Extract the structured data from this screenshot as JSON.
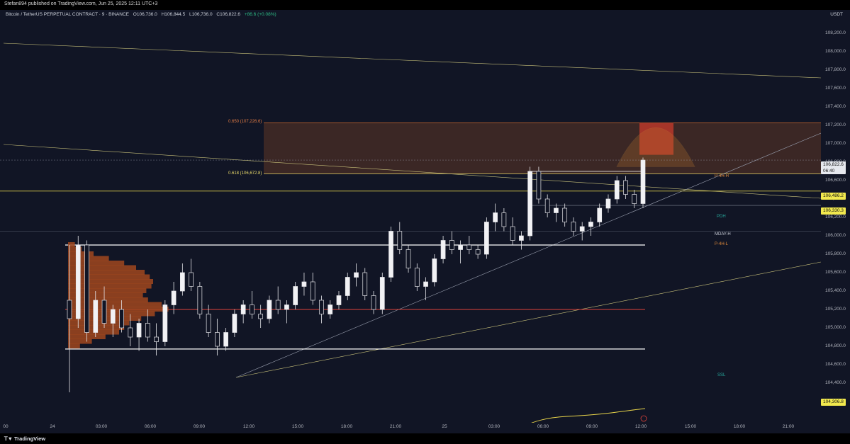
{
  "header": {
    "published": "Stefan894 published on TradingView.com, Jun 25, 2025 12:11 UTC+3"
  },
  "legend": {
    "symbol": "Bitcoin / TetherUS PERPETUAL CONTRACT · 9 · BINANCE",
    "open": "O106,736.0",
    "high": "H106,844.5",
    "low": "L106,736.0",
    "close": "C106,822.6",
    "change": "+86.6 (+0.08%)"
  },
  "currency": "USDT",
  "price_ticks": [
    "108,200.0",
    "108,000.0",
    "107,800.0",
    "107,600.0",
    "107,400.0",
    "107,200.0",
    "107,000.0",
    "106,800.0",
    "106,600.0",
    "106,400.0",
    "106,200.0",
    "106,000.0",
    "105,800.0",
    "105,600.0",
    "105,400.0",
    "105,200.0",
    "105,000.0",
    "104,800.0",
    "104,600.0",
    "104,400.0",
    "104,200.0"
  ],
  "time_ticks": [
    "00",
    "24",
    "03:00",
    "06:00",
    "09:00",
    "12:00",
    "15:00",
    "18:00",
    "21:00",
    "25",
    "03:00",
    "06:00",
    "09:00",
    "12:00",
    "15:00",
    "18:00",
    "21:00"
  ],
  "badges": {
    "last_price": "106,822.6",
    "countdown": "06:40",
    "level_a": "106,486.2",
    "level_b": "106,330.3",
    "level_c": "104,306.8"
  },
  "fib": {
    "f650": "0.650 (107,226.6)",
    "f618": "0.618 (106,672.8)"
  },
  "levels": {
    "p4h_h": "P-4H-H",
    "pdh": "PDH",
    "mday_h": "MDAY-H",
    "p4h_l": "P-4H-L",
    "bottom": "SSL"
  },
  "footer": {
    "brand": "TradingView"
  },
  "colors": {
    "background": "#111525",
    "candle": "#e6e6ea",
    "fib_zone": "#8a4a25",
    "red_box": "#c0392b",
    "yellow_line": "#d4c64a",
    "red_line": "#e0433a",
    "green_label": "#26a69a"
  },
  "chart_data": {
    "type": "candlestick",
    "symbol": "BTCUSDT.P",
    "interval": "9",
    "ylim": [
      104100,
      108300
    ],
    "last": {
      "open": 106736.0,
      "high": 106844.5,
      "low": 106736.0,
      "close": 106822.6
    },
    "horizontal_levels": [
      107226.6,
      106672.8,
      106486.2,
      106330.3,
      105900.0,
      105200.0,
      104770.0
    ],
    "ohlc": [
      [
        105300,
        105900,
        104300,
        105100
      ],
      [
        105100,
        106000,
        105000,
        105900
      ],
      [
        105900,
        105950,
        104850,
        104950
      ],
      [
        104950,
        105400,
        104900,
        105300
      ],
      [
        105300,
        105450,
        105000,
        105050
      ],
      [
        105050,
        105250,
        104900,
        105200
      ],
      [
        105200,
        105300,
        104950,
        105000
      ],
      [
        105000,
        105150,
        104800,
        104900
      ],
      [
        104900,
        105100,
        104750,
        105050
      ],
      [
        105050,
        105200,
        104850,
        104900
      ],
      [
        104900,
        105050,
        104700,
        104850
      ],
      [
        104850,
        105300,
        104800,
        105250
      ],
      [
        105250,
        105500,
        105150,
        105400
      ],
      [
        105400,
        105700,
        105350,
        105600
      ],
      [
        105600,
        105750,
        105400,
        105450
      ],
      [
        105450,
        105500,
        105100,
        105150
      ],
      [
        105150,
        105250,
        104900,
        104950
      ],
      [
        104950,
        105100,
        104700,
        104800
      ],
      [
        104800,
        105000,
        104750,
        104950
      ],
      [
        104950,
        105200,
        104900,
        105150
      ],
      [
        105150,
        105300,
        105050,
        105250
      ],
      [
        105250,
        105400,
        105100,
        105150
      ],
      [
        105150,
        105250,
        105000,
        105100
      ],
      [
        105100,
        105350,
        105050,
        105300
      ],
      [
        105300,
        105450,
        105150,
        105200
      ],
      [
        105200,
        105300,
        105050,
        105250
      ],
      [
        105250,
        105500,
        105200,
        105450
      ],
      [
        105450,
        105600,
        105350,
        105500
      ],
      [
        105500,
        105600,
        105250,
        105300
      ],
      [
        105300,
        105350,
        105050,
        105150
      ],
      [
        105150,
        105300,
        105100,
        105250
      ],
      [
        105250,
        105400,
        105200,
        105350
      ],
      [
        105350,
        105600,
        105300,
        105550
      ],
      [
        105550,
        105700,
        105450,
        105600
      ],
      [
        105600,
        105650,
        105300,
        105350
      ],
      [
        105350,
        105400,
        105150,
        105200
      ],
      [
        105200,
        105600,
        105150,
        105550
      ],
      [
        105550,
        106100,
        105500,
        106050
      ],
      [
        106050,
        106150,
        105800,
        105850
      ],
      [
        105850,
        105900,
        105600,
        105650
      ],
      [
        105650,
        105700,
        105400,
        105450
      ],
      [
        105450,
        105550,
        105300,
        105500
      ],
      [
        105500,
        105800,
        105450,
        105750
      ],
      [
        105750,
        106000,
        105700,
        105950
      ],
      [
        105950,
        106050,
        105800,
        105850
      ],
      [
        105850,
        105950,
        105700,
        105900
      ],
      [
        105900,
        106000,
        105800,
        105850
      ],
      [
        105850,
        105900,
        105750,
        105800
      ],
      [
        105800,
        106200,
        105750,
        106150
      ],
      [
        106150,
        106350,
        106050,
        106250
      ],
      [
        106250,
        106300,
        106050,
        106100
      ],
      [
        106100,
        106200,
        105900,
        105950
      ],
      [
        105950,
        106050,
        105850,
        106000
      ],
      [
        106000,
        106750,
        105950,
        106700
      ],
      [
        106700,
        106750,
        106350,
        106400
      ],
      [
        106400,
        106450,
        106200,
        106250
      ],
      [
        106250,
        106350,
        106150,
        106300
      ],
      [
        106300,
        106350,
        106100,
        106150
      ],
      [
        106150,
        106200,
        106000,
        106050
      ],
      [
        106050,
        106150,
        105950,
        106100
      ],
      [
        106100,
        106200,
        106000,
        106150
      ],
      [
        106150,
        106350,
        106100,
        106300
      ],
      [
        106300,
        106450,
        106250,
        106400
      ],
      [
        106400,
        106650,
        106350,
        106600
      ],
      [
        106600,
        106650,
        106400,
        106450
      ],
      [
        106450,
        106500,
        106300,
        106350
      ],
      [
        106350,
        106850,
        106300,
        106822.6
      ]
    ]
  }
}
